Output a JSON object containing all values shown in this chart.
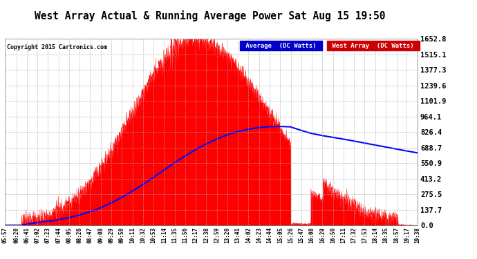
{
  "title": "West Array Actual & Running Average Power Sat Aug 15 19:50",
  "copyright": "Copyright 2015 Cartronics.com",
  "legend_labels": [
    "Average  (DC Watts)",
    "West Array  (DC Watts)"
  ],
  "ytick_values": [
    0.0,
    137.7,
    275.5,
    413.2,
    550.9,
    688.7,
    826.4,
    964.1,
    1101.9,
    1239.6,
    1377.3,
    1515.1,
    1652.8
  ],
  "ymax": 1652.8,
  "ymin": 0.0,
  "plot_bg_color": "#ffffff",
  "fig_bg_color": "#ffffff",
  "grid_color": "#aaaaaa",
  "fill_color": "#ff0000",
  "avg_color": "#0000ff",
  "x_labels": [
    "05:57",
    "06:20",
    "06:41",
    "07:02",
    "07:23",
    "07:44",
    "08:05",
    "08:26",
    "08:47",
    "09:08",
    "09:29",
    "09:50",
    "10:11",
    "10:32",
    "10:53",
    "11:14",
    "11:35",
    "11:56",
    "12:17",
    "12:38",
    "12:59",
    "13:20",
    "13:41",
    "14:02",
    "14:23",
    "14:44",
    "15:05",
    "15:26",
    "15:47",
    "16:08",
    "16:29",
    "16:50",
    "17:11",
    "17:32",
    "17:53",
    "18:14",
    "18:35",
    "18:57",
    "19:17",
    "19:38"
  ]
}
